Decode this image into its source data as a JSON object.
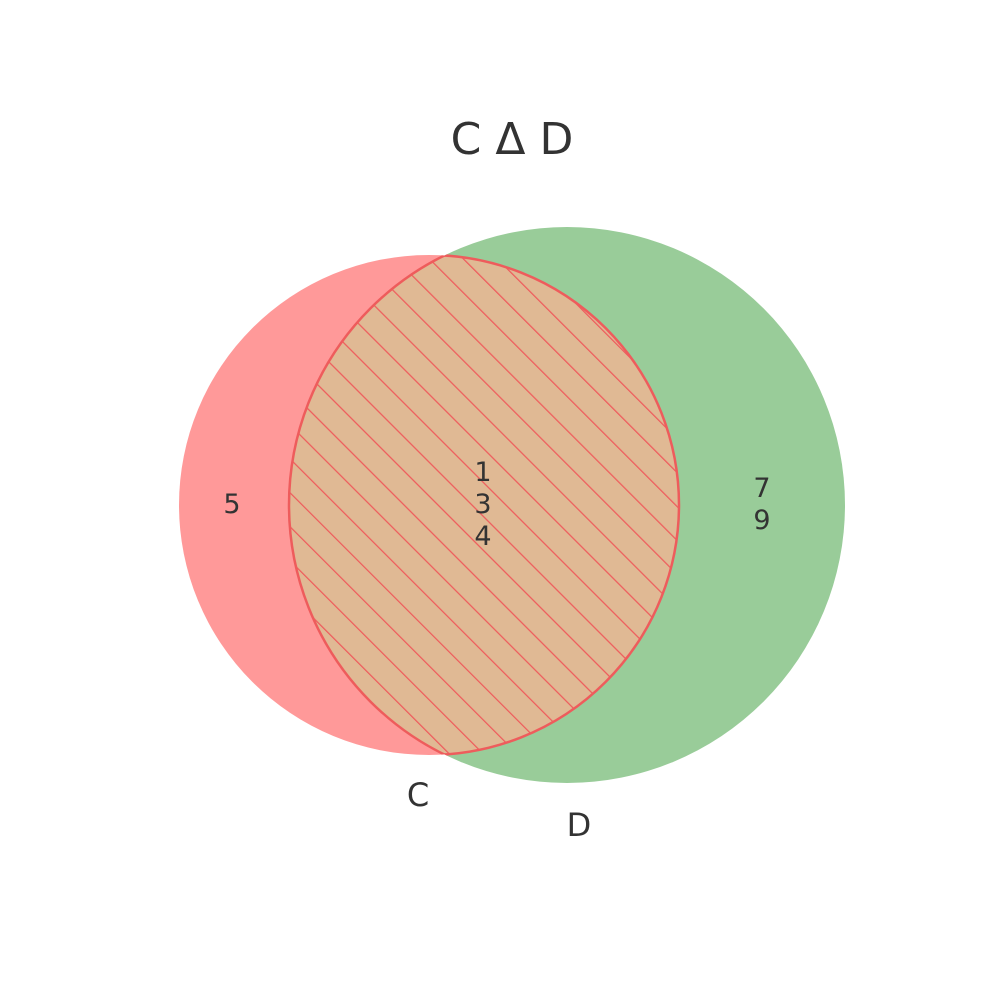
{
  "title": "C Δ D",
  "sets": {
    "c": {
      "label": "C",
      "color": "#ff9999"
    },
    "d": {
      "label": "D",
      "color": "#99cc99"
    }
  },
  "regions": {
    "only_c": [
      "5"
    ],
    "both": [
      "1",
      "3",
      "4"
    ],
    "only_d": [
      "7",
      "9"
    ]
  },
  "highlight": {
    "fill": "#e0b994",
    "hatch_color": "#ee5c5c"
  }
}
